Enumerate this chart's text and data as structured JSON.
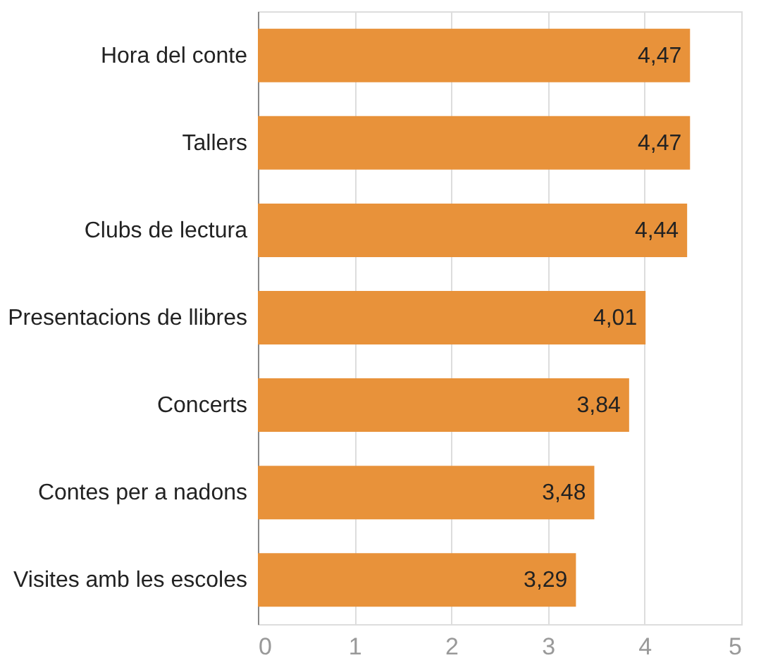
{
  "chart_data": {
    "type": "bar",
    "orientation": "horizontal",
    "categories": [
      "Hora del conte",
      "Tallers",
      "Clubs de lectura",
      "Presentacions de llibres",
      "Concerts",
      "Contes per a nadons",
      "Visites amb les escoles"
    ],
    "values": [
      4.47,
      4.47,
      4.44,
      4.01,
      3.84,
      3.48,
      3.29
    ],
    "value_labels": [
      "4,47",
      "4,47",
      "4,44",
      "4,01",
      "3,84",
      "3,48",
      "3,29"
    ],
    "color": "#e8923a",
    "xlim": [
      0,
      5
    ],
    "xticks": [
      0,
      1,
      2,
      3,
      4,
      5
    ],
    "grid": "x"
  }
}
